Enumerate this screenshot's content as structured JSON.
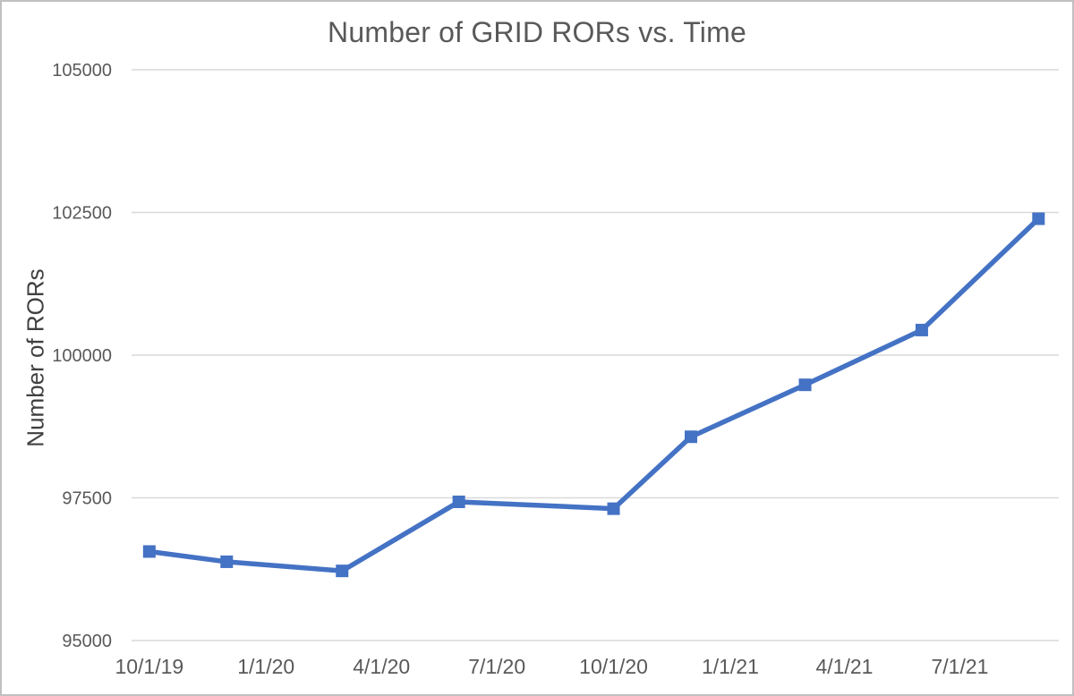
{
  "window": {
    "background": "#ffffff",
    "border_color": "#c0c0c0"
  },
  "chart_data": {
    "type": "line",
    "title": "Number of GRID RORs vs. Time",
    "xlabel": "",
    "ylabel": "Number of RORs",
    "ylim": [
      95000,
      105000
    ],
    "yticks": [
      95000,
      97500,
      100000,
      102500,
      105000
    ],
    "xticks": [
      {
        "label": "10/1/19",
        "day": 0
      },
      {
        "label": "1/1/20",
        "day": 92
      },
      {
        "label": "4/1/20",
        "day": 183
      },
      {
        "label": "7/1/20",
        "day": 274
      },
      {
        "label": "10/1/20",
        "day": 366
      },
      {
        "label": "1/1/21",
        "day": 458
      },
      {
        "label": "4/1/21",
        "day": 548
      },
      {
        "label": "7/1/21",
        "day": 639
      }
    ],
    "x_day_range": [
      -14,
      717
    ],
    "grid": "horizontal-only",
    "legend": "none",
    "series": [
      {
        "name": "Number of RORs",
        "color": "#4472C4",
        "marker": "square",
        "points": [
          {
            "date": "10/1/19",
            "day": 0,
            "value": 96560
          },
          {
            "date": "12/1/19",
            "day": 61,
            "value": 96380
          },
          {
            "date": "3/1/20",
            "day": 152,
            "value": 96220
          },
          {
            "date": "6/1/20",
            "day": 244,
            "value": 97430
          },
          {
            "date": "10/1/20",
            "day": 366,
            "value": 97310
          },
          {
            "date": "12/1/20",
            "day": 427,
            "value": 98570
          },
          {
            "date": "3/1/21",
            "day": 517,
            "value": 99480
          },
          {
            "date": "6/1/21",
            "day": 609,
            "value": 100440
          },
          {
            "date": "9/1/21",
            "day": 701,
            "value": 102390
          }
        ]
      }
    ],
    "colors": {
      "series_line": "#4472C4",
      "marker_fill": "#4472C4",
      "gridline": "#d9d9d9",
      "tick_label": "#595959",
      "title": "#595959",
      "axis_title": "#404040"
    }
  }
}
